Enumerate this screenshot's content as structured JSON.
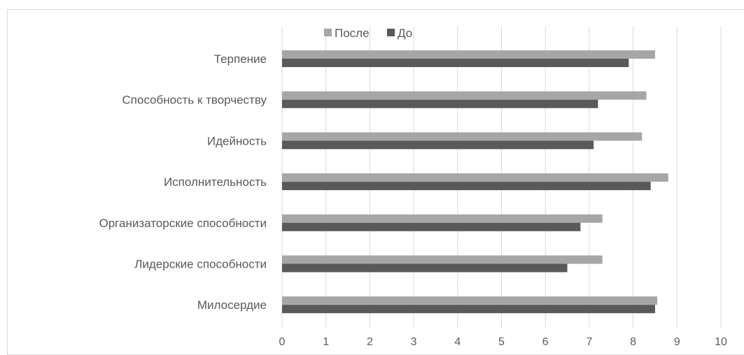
{
  "chart_data": {
    "type": "bar",
    "orientation": "horizontal",
    "categories": [
      "Терпение",
      "Способность к творчеству",
      "Идейность",
      "Исполнительность",
      "Организаторские способности",
      "Лидерские способности",
      "Милосердие"
    ],
    "series": [
      {
        "name": "После",
        "color": "#a6a6a6",
        "values": [
          8.5,
          8.3,
          8.2,
          8.8,
          7.3,
          7.3,
          8.55
        ]
      },
      {
        "name": "До",
        "color": "#595959",
        "values": [
          7.9,
          7.2,
          7.1,
          8.4,
          6.8,
          6.5,
          8.5
        ]
      }
    ],
    "xlim": [
      0,
      10
    ],
    "xticks": [
      "0",
      "1",
      "2",
      "3",
      "4",
      "5",
      "6",
      "7",
      "8",
      "9",
      "10"
    ],
    "grid": true,
    "legend": "top"
  }
}
